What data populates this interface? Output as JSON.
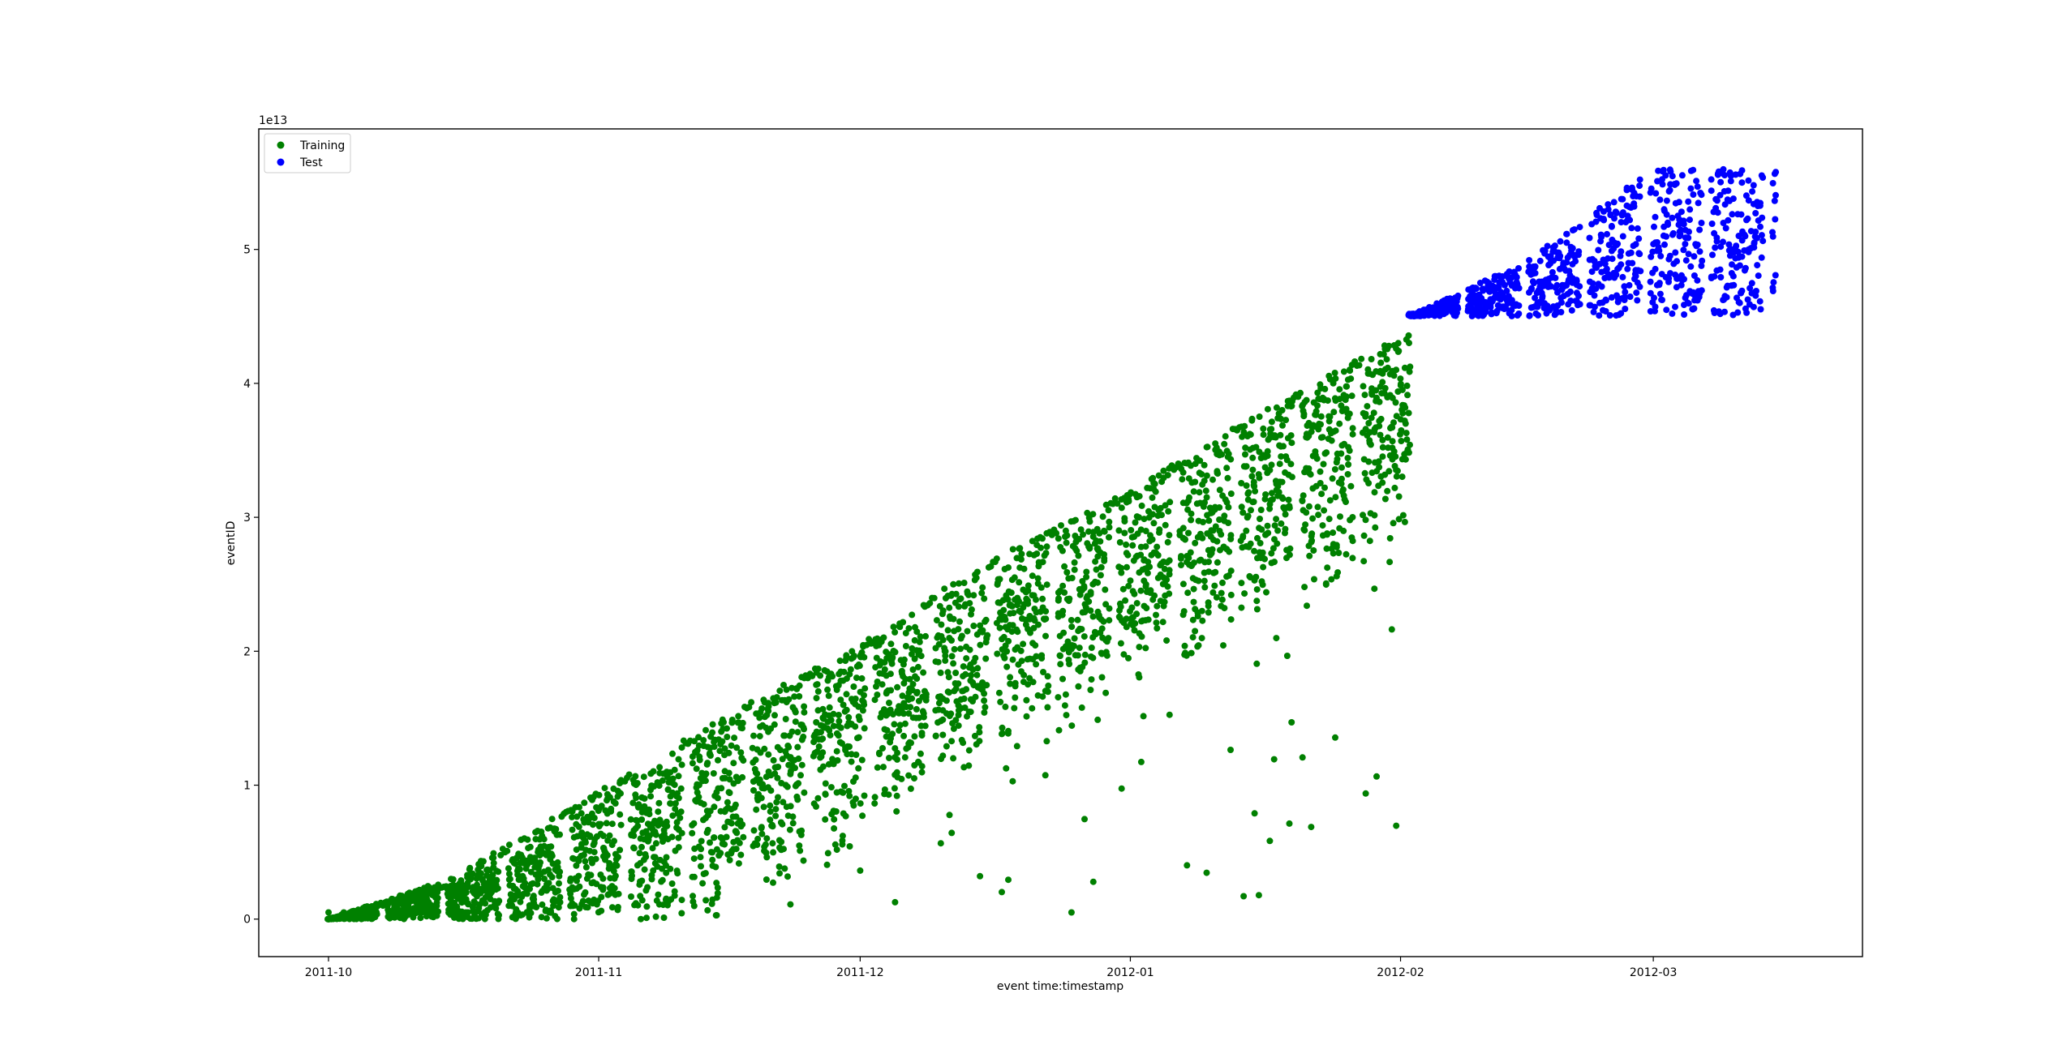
{
  "chart_data": {
    "type": "scatter",
    "title": "",
    "xlabel": "event time:timestamp",
    "ylabel": "eventID",
    "y_offset_label": "1e13",
    "x_axis_kind": "date",
    "xlim": [
      "2011-09-23",
      "2012-03-25"
    ],
    "ylim": [
      -0.28,
      5.9
    ],
    "x_ticks": [
      "2011-10",
      "2011-11",
      "2011-12",
      "2012-01",
      "2012-02",
      "2012-03"
    ],
    "y_ticks": [
      "0",
      "1",
      "2",
      "3",
      "4",
      "5"
    ],
    "y_tick_values": [
      0,
      1,
      2,
      3,
      4,
      5
    ],
    "grid": false,
    "legend_position": "top-left",
    "series": [
      {
        "name": "Training",
        "color": "#008000",
        "x_range": [
          "2011-10-01",
          "2012-02-02"
        ],
        "upper_envelope": [
          {
            "x": "2011-10-01",
            "y": 0.0
          },
          {
            "x": "2011-10-15",
            "y": 0.3
          },
          {
            "x": "2011-11-01",
            "y": 0.95
          },
          {
            "x": "2011-11-15",
            "y": 1.5
          },
          {
            "x": "2011-12-01",
            "y": 2.05
          },
          {
            "x": "2011-12-15",
            "y": 2.65
          },
          {
            "x": "2012-01-01",
            "y": 3.2
          },
          {
            "x": "2012-01-15",
            "y": 3.75
          },
          {
            "x": "2012-02-01",
            "y": 4.35
          },
          {
            "x": "2012-02-02",
            "y": 4.45
          }
        ]
      },
      {
        "name": "Test",
        "color": "#0000ff",
        "x_range": [
          "2012-02-02",
          "2012-03-15"
        ],
        "upper_envelope": [
          {
            "x": "2012-02-02",
            "y": 4.5
          },
          {
            "x": "2012-02-15",
            "y": 4.9
          },
          {
            "x": "2012-03-01",
            "y": 5.6
          },
          {
            "x": "2012-03-15",
            "y": 5.6
          }
        ],
        "lower_bound": 4.5
      }
    ]
  }
}
